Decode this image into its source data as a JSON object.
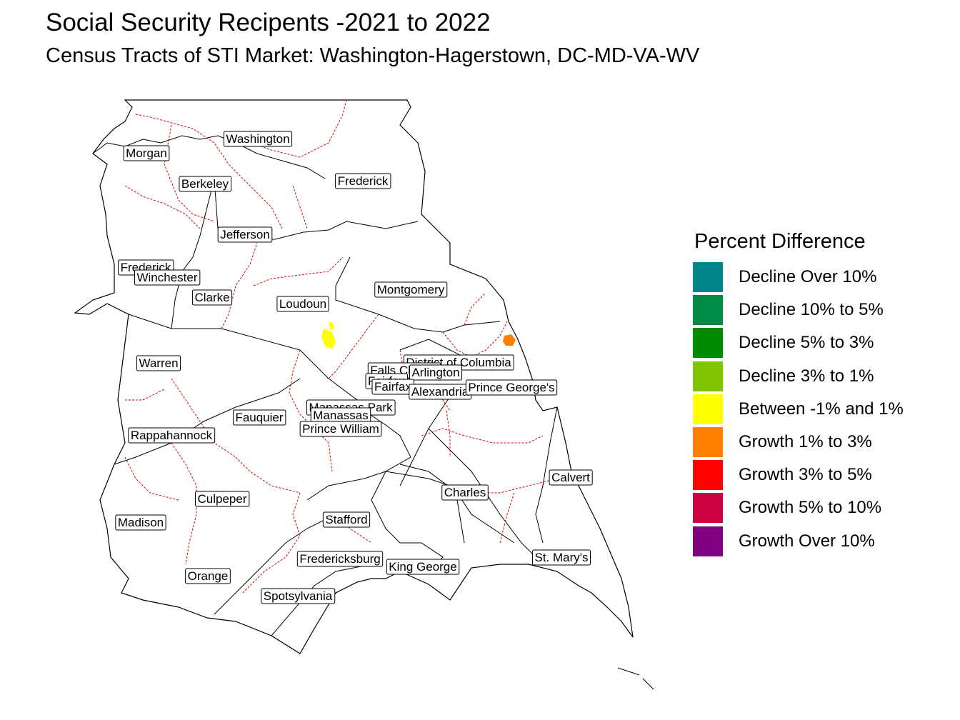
{
  "title": "Social Security Recipents -2021 to 2022",
  "subtitle": "Census Tracts of STI Market: Washington-Hagerstown, DC-MD-VA-WV",
  "legend": {
    "title": "Percent Difference",
    "items": [
      {
        "label": "Decline Over 10%",
        "color": "#00868B"
      },
      {
        "label": "Decline 10% to 5%",
        "color": "#008B45"
      },
      {
        "label": "Decline 5% to 3%",
        "color": "#008B00"
      },
      {
        "label": "Decline 3% to 1%",
        "color": "#7FC400"
      },
      {
        "label": "Between -1% and 1%",
        "color": "#FFFF00"
      },
      {
        "label": "Growth 1% to 3%",
        "color": "#FF7F00"
      },
      {
        "label": "Growth 3% to 5%",
        "color": "#FF0000"
      },
      {
        "label": "Growth 5% to 10%",
        "color": "#CD0040"
      },
      {
        "label": "Growth Over 10%",
        "color": "#800080"
      }
    ]
  },
  "counties": [
    "Washington",
    "Morgan",
    "Berkeley",
    "Frederick",
    "Jefferson",
    "Frederick",
    "Winchester",
    "Clarke",
    "Loudoun",
    "Montgomery",
    "Warren",
    "District of Columbia",
    "Falls Church",
    "Arlington",
    "Fairfax",
    "Fairfax",
    "Alexandria",
    "Prince George's",
    "Manassas Park",
    "Manassas",
    "Fauquier",
    "Prince William",
    "Rappahannock",
    "Calvert",
    "Charles",
    "Culpeper",
    "Madison",
    "Stafford",
    "Fredericksburg",
    "King George",
    "St. Mary's",
    "Orange",
    "Spotsylvania"
  ]
}
